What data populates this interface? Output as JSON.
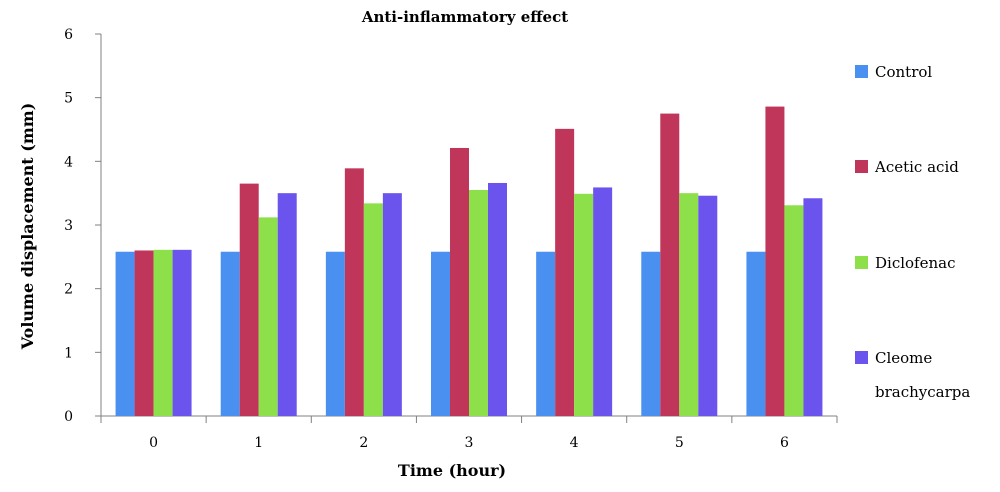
{
  "chart_data": {
    "type": "bar",
    "title": "Anti-inflammatory effect",
    "xlabel": "Time (hour)",
    "ylabel": "Volume displacement (mm)",
    "categories": [
      "0",
      "1",
      "2",
      "3",
      "4",
      "5",
      "6"
    ],
    "yticks": [
      "0",
      "1",
      "2",
      "3",
      "4",
      "5",
      "6"
    ],
    "ylim": [
      0,
      6
    ],
    "grid": false,
    "legend_position": "right",
    "series": [
      {
        "name": "Control",
        "legend_lines": [
          "Control"
        ],
        "color": "#4a90f0",
        "values": [
          2.58,
          2.58,
          2.58,
          2.58,
          2.58,
          2.58,
          2.58
        ]
      },
      {
        "name": "Acetic acid",
        "legend_lines": [
          "Acetic acid"
        ],
        "color": "#c0365a",
        "values": [
          2.6,
          3.65,
          3.89,
          4.21,
          4.51,
          4.75,
          4.86
        ]
      },
      {
        "name": "Diclofenac",
        "legend_lines": [
          "Diclofenac"
        ],
        "color": "#8ee04a",
        "values": [
          2.61,
          3.12,
          3.34,
          3.55,
          3.49,
          3.5,
          3.31
        ]
      },
      {
        "name": "Cleome brachycarpa",
        "legend_lines": [
          "Cleome",
          "brachycarpa"
        ],
        "color": "#6b54ee",
        "values": [
          2.61,
          3.5,
          3.5,
          3.66,
          3.59,
          3.46,
          3.42
        ]
      }
    ]
  }
}
